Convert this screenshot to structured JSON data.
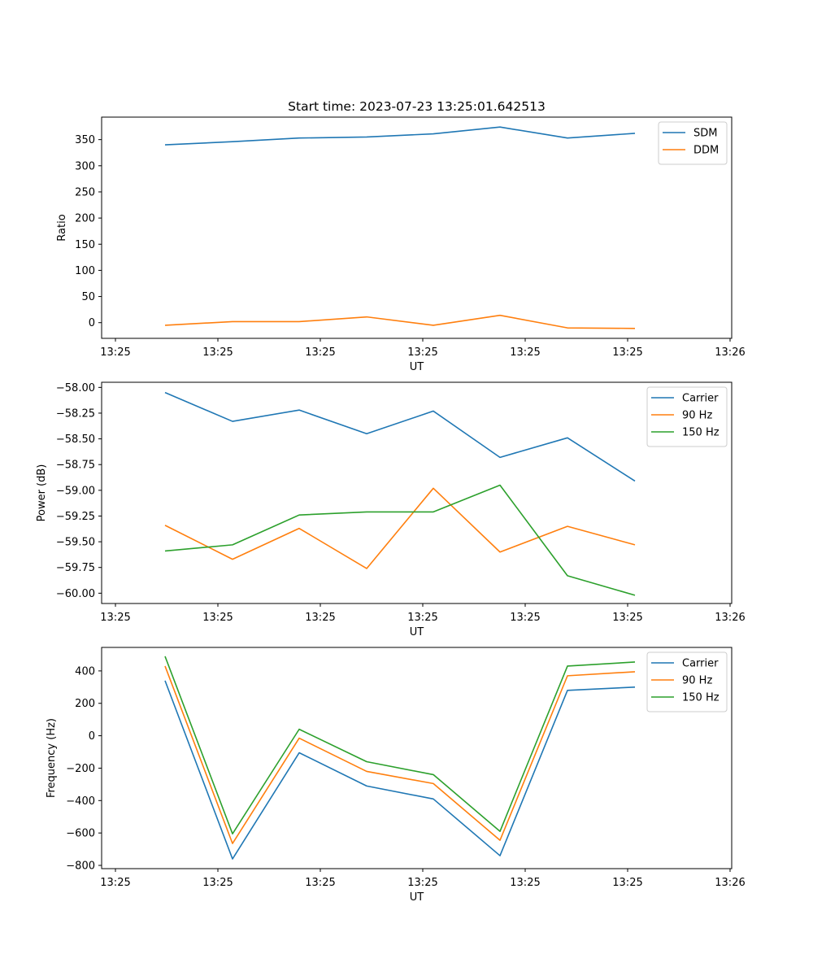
{
  "figure": {
    "title": "Start time: 2023-07-23 13:25:01.642513"
  },
  "colors": {
    "blue": "#1f77b4",
    "orange": "#ff7f0e",
    "green": "#2ca02c"
  },
  "chart_data": [
    {
      "type": "line",
      "title": "Start time: 2023-07-23 13:25:01.642513",
      "xlabel": "UT",
      "ylabel": "Ratio",
      "x_ticks": [
        "13:25",
        "13:25",
        "13:25",
        "13:25",
        "13:25",
        "13:25",
        "13:26"
      ],
      "y_ticks": [
        0,
        50,
        100,
        150,
        200,
        250,
        300,
        350
      ],
      "ylim": [
        -30,
        393
      ],
      "legend_position": "top-right",
      "series": [
        {
          "name": "SDM",
          "color": "#1f77b4",
          "values": [
            340,
            346,
            353,
            355,
            361,
            374,
            353,
            362
          ]
        },
        {
          "name": "DDM",
          "color": "#ff7f0e",
          "values": [
            -5,
            2,
            2,
            11,
            -5,
            14,
            -10,
            -11
          ]
        }
      ]
    },
    {
      "type": "line",
      "title": "",
      "xlabel": "UT",
      "ylabel": "Power (dB)",
      "x_ticks": [
        "13:25",
        "13:25",
        "13:25",
        "13:25",
        "13:25",
        "13:25",
        "13:26"
      ],
      "y_ticks": [
        -58.0,
        -58.25,
        -58.5,
        -58.75,
        -59.0,
        -59.25,
        -59.5,
        -59.75,
        -60.0
      ],
      "y_tick_labels": [
        "−58.00",
        "−58.25",
        "−58.50",
        "−58.75",
        "−59.00",
        "−59.25",
        "−59.50",
        "−59.75",
        "−60.00"
      ],
      "ylim": [
        -60.1,
        -57.95
      ],
      "legend_position": "top-right",
      "series": [
        {
          "name": "Carrier",
          "color": "#1f77b4",
          "values": [
            -58.05,
            -58.33,
            -58.22,
            -58.45,
            -58.23,
            -58.68,
            -58.49,
            -58.91
          ]
        },
        {
          "name": "90 Hz",
          "color": "#ff7f0e",
          "values": [
            -59.34,
            -59.67,
            -59.37,
            -59.76,
            -58.98,
            -59.6,
            -59.35,
            -59.53
          ]
        },
        {
          "name": "150 Hz",
          "color": "#2ca02c",
          "values": [
            -59.59,
            -59.53,
            -59.24,
            -59.21,
            -59.21,
            -58.95,
            -59.83,
            -60.02
          ]
        }
      ]
    },
    {
      "type": "line",
      "title": "",
      "xlabel": "UT",
      "ylabel": "Frequency (Hz)",
      "x_ticks": [
        "13:25",
        "13:25",
        "13:25",
        "13:25",
        "13:25",
        "13:25",
        "13:26"
      ],
      "y_ticks": [
        -800,
        -600,
        -400,
        -200,
        0,
        200,
        400
      ],
      "y_tick_labels": [
        "−800",
        "−600",
        "−400",
        "−200",
        "0",
        "200",
        "400"
      ],
      "ylim": [
        -820,
        545
      ],
      "legend_position": "top-right",
      "series": [
        {
          "name": "Carrier",
          "color": "#1f77b4",
          "values": [
            340,
            -760,
            -105,
            -310,
            -390,
            -740,
            280,
            300
          ]
        },
        {
          "name": "90 Hz",
          "color": "#ff7f0e",
          "values": [
            430,
            -665,
            -15,
            -220,
            -295,
            -645,
            370,
            395
          ]
        },
        {
          "name": "150 Hz",
          "color": "#2ca02c",
          "values": [
            490,
            -605,
            40,
            -160,
            -240,
            -590,
            430,
            455
          ]
        }
      ]
    }
  ]
}
